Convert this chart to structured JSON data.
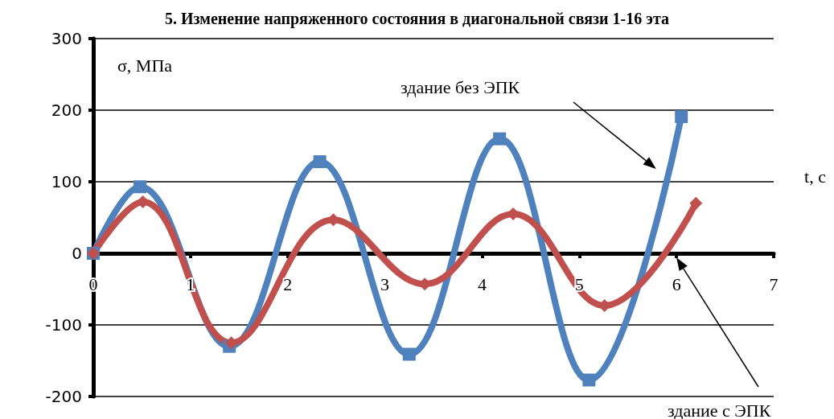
{
  "chart_data": {
    "type": "line",
    "title": "5. Изменение напряженного состояния в диагональной связи 1-16 эта",
    "xlabel": "t, с",
    "ylabel": "σ, МПа",
    "xlim": [
      0,
      7
    ],
    "xticks": [
      0,
      1,
      2,
      3,
      4,
      5,
      6,
      7
    ],
    "ylim": [
      -200,
      300
    ],
    "yticks": [
      -200,
      -100,
      0,
      100,
      200,
      300
    ],
    "grid": "y",
    "legend": false,
    "line_style": "solid",
    "series": [
      {
        "name": "здание без ЭПК",
        "color": "#4f81bd",
        "marker": "square",
        "x": [
          0,
          0.48,
          1.4,
          2.33,
          3.25,
          4.18,
          5.1,
          6.05
        ],
        "values": [
          0,
          93,
          -130,
          128,
          -141,
          160,
          -177,
          191
        ]
      },
      {
        "name": "здание с ЭПК",
        "color": "#c0504d",
        "marker": "diamond",
        "x": [
          0,
          0.51,
          1.42,
          2.47,
          3.41,
          4.32,
          5.26,
          6.2
        ],
        "values": [
          0,
          72,
          -125,
          47,
          -43,
          55,
          -73,
          70
        ]
      }
    ]
  }
}
